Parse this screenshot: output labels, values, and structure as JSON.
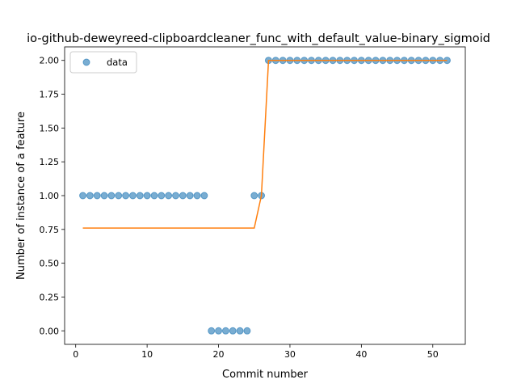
{
  "chart_data": {
    "type": "scatter",
    "title": "io-github-deweyreed-clipboardcleaner_func_with_default_value-binary_sigmoid",
    "xlabel": "Commit number",
    "ylabel": "Number of instance of a feature",
    "xlim": [
      -1.55,
      54.55
    ],
    "ylim": [
      -0.1,
      2.1
    ],
    "xticks": [
      0,
      10,
      20,
      30,
      40,
      50
    ],
    "yticks": [
      0.0,
      0.25,
      0.5,
      0.75,
      1.0,
      1.25,
      1.5,
      1.75,
      2.0
    ],
    "xtick_labels": [
      "0",
      "10",
      "20",
      "30",
      "40",
      "50"
    ],
    "ytick_labels": [
      "0.00",
      "0.25",
      "0.50",
      "0.75",
      "1.00",
      "1.25",
      "1.50",
      "1.75",
      "2.00"
    ],
    "grid": false,
    "legend_position": "upper-left",
    "series": [
      {
        "name": "data",
        "kind": "scatter",
        "color": "#1f77b4",
        "x": [
          1,
          2,
          3,
          4,
          5,
          6,
          7,
          8,
          9,
          10,
          11,
          12,
          13,
          14,
          15,
          16,
          17,
          18,
          19,
          20,
          21,
          22,
          23,
          24,
          25,
          26,
          27,
          28,
          29,
          30,
          31,
          32,
          33,
          34,
          35,
          36,
          37,
          38,
          39,
          40,
          41,
          42,
          43,
          44,
          45,
          46,
          47,
          48,
          49,
          50,
          51,
          52
        ],
        "y": [
          1,
          1,
          1,
          1,
          1,
          1,
          1,
          1,
          1,
          1,
          1,
          1,
          1,
          1,
          1,
          1,
          1,
          1,
          0,
          0,
          0,
          0,
          0,
          0,
          1,
          1,
          2,
          2,
          2,
          2,
          2,
          2,
          2,
          2,
          2,
          2,
          2,
          2,
          2,
          2,
          2,
          2,
          2,
          2,
          2,
          2,
          2,
          2,
          2,
          2,
          2,
          2
        ]
      },
      {
        "kind": "line",
        "color": "#ff7f0e",
        "x": [
          1,
          25,
          26,
          27,
          52
        ],
        "y": [
          0.76,
          0.76,
          1.0,
          2.0,
          2.0
        ]
      }
    ]
  }
}
